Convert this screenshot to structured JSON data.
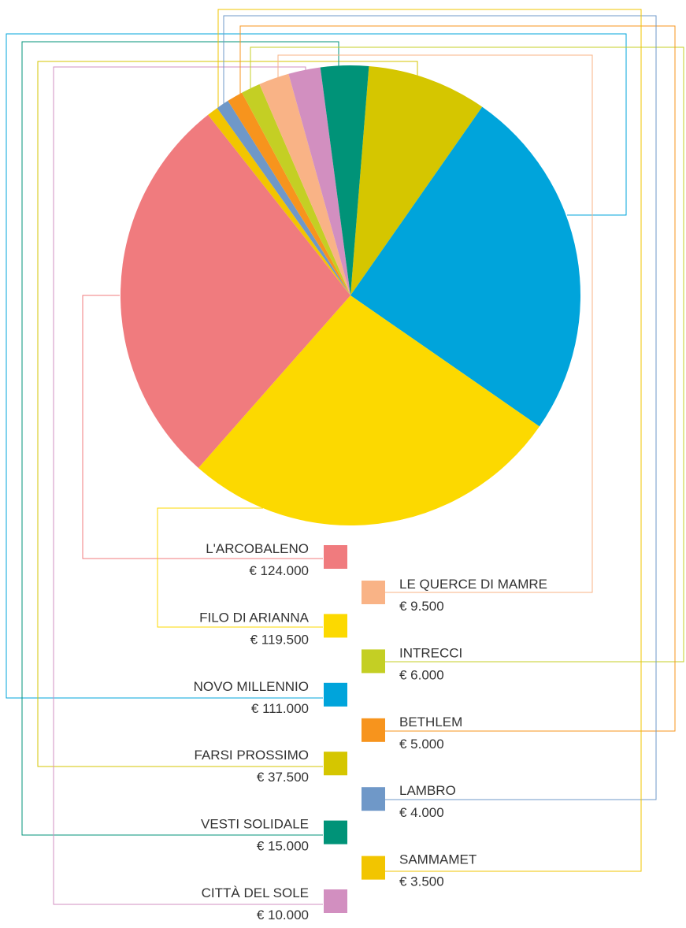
{
  "chart_data": {
    "type": "pie",
    "categories": [
      "L'ARCOBALENO",
      "FILO DI ARIANNA",
      "NOVO MILLENNIO",
      "FARSI PROSSIMO",
      "VESTI SOLIDALE",
      "CITTÀ DEL SOLE",
      "LE QUERCE DI MAMRE",
      "INTRECCI",
      "BETHLEM",
      "LAMBRO",
      "SAMMAMET"
    ],
    "values": [
      124000,
      119500,
      111000,
      37500,
      15000,
      10000,
      9500,
      6000,
      5000,
      4000,
      3500
    ],
    "value_labels": [
      "€ 124.000",
      "€ 119.500",
      "€ 111.000",
      "€ 37.500",
      "€ 15.000",
      "€ 10.000",
      "€ 9.500",
      "€ 6.000",
      "€ 5.000",
      "€ 4.000",
      "€ 3.500"
    ],
    "colors": [
      "#f07b7e",
      "#fcd900",
      "#00a4db",
      "#d5c600",
      "#009378",
      "#d28fc0",
      "#f9b386",
      "#c4cf24",
      "#f7941d",
      "#6f98c8",
      "#f2c500"
    ]
  }
}
